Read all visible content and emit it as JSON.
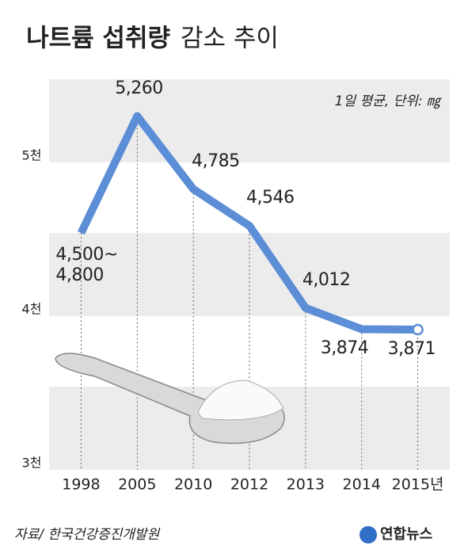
{
  "chart_data": {
    "type": "line",
    "title": "나트륨 섭취량",
    "title_light": "감소 추이",
    "subtitle": "1일 평균, 단위: ㎎",
    "categories": [
      "1998",
      "2005",
      "2010",
      "2012",
      "2013",
      "2014",
      "2015년"
    ],
    "series": [
      {
        "name": "나트륨 섭취량",
        "color": "#5b8ed6",
        "values": [
          4500,
          5260,
          4785,
          4546,
          4012,
          3874,
          3871
        ],
        "value_labels": [
          "4,500~\n4,800",
          "5,260",
          "4,785",
          "4,546",
          "4,012",
          "3,874",
          "3,871"
        ]
      }
    ],
    "ylim": [
      3000,
      5500
    ],
    "yticks": [
      {
        "value": 5000,
        "label": "5천"
      },
      {
        "value": 4000,
        "label": "4천"
      },
      {
        "value": 3000,
        "label": "3천"
      }
    ],
    "source": "자료/ 한국건강증진개발원",
    "logo": "연합뉴스"
  }
}
